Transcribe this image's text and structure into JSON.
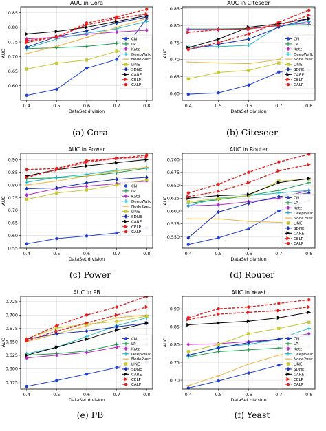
{
  "series_styles": [
    {
      "name": "CN",
      "color": "#1f3fd6",
      "marker": "dot",
      "dash": false
    },
    {
      "name": "LP",
      "color": "#1a9e4a",
      "marker": "plus",
      "dash": false
    },
    {
      "name": "Katz",
      "color": "#b22bc7",
      "marker": "diamond",
      "dash": false
    },
    {
      "name": "DeepWalk",
      "color": "#22b8c9",
      "marker": "plus",
      "dash": false
    },
    {
      "name": "Node2vec",
      "color": "#f0b43c",
      "marker": "line",
      "dash": false
    },
    {
      "name": "LINE",
      "color": "#c5c830",
      "marker": "square",
      "dash": false
    },
    {
      "name": "SDNE",
      "color": "#1a2fb0",
      "marker": "diamond",
      "dash": false
    },
    {
      "name": "CARE",
      "color": "#000000",
      "marker": "triangle",
      "dash": false
    },
    {
      "name": "CELP",
      "color": "#e32020",
      "marker": "triangle",
      "dash": true
    },
    {
      "name": "CALP",
      "color": "#e32020",
      "marker": "dot",
      "dash": true
    }
  ],
  "chart_data": [
    {
      "type": "line",
      "title": "AUC in Cora",
      "caption": "(a) Cora",
      "xlabel": "DataSet division",
      "ylabel": "AUC",
      "x": [
        0.4,
        0.5,
        0.6,
        0.7,
        0.8
      ],
      "xticks": [
        "0.4",
        "0.5",
        "0.6",
        "0.7",
        "0.8"
      ],
      "ylim": [
        0.55,
        0.87
      ],
      "yticks": [
        0.6,
        0.65,
        0.7,
        0.75,
        0.8,
        0.85
      ],
      "ytick_labels": [
        "0.60",
        "0.65",
        "0.70",
        "0.75",
        "0.80",
        "0.85"
      ],
      "legend": "right",
      "series": [
        {
          "name": "CN",
          "values": [
            0.567,
            0.588,
            0.66,
            0.69,
            0.83
          ]
        },
        {
          "name": "LP",
          "values": [
            0.727,
            0.73,
            0.735,
            0.745,
            0.765
          ]
        },
        {
          "name": "Katz",
          "values": [
            0.76,
            0.766,
            0.776,
            0.784,
            0.79
          ]
        },
        {
          "name": "DeepWalk",
          "values": [
            0.728,
            0.76,
            0.78,
            0.795,
            0.82
          ]
        },
        {
          "name": "Node2vec",
          "values": [
            0.71,
            0.735,
            0.765,
            0.8,
            0.83
          ]
        },
        {
          "name": "LINE",
          "values": [
            0.657,
            0.677,
            0.688,
            0.718,
            0.725
          ]
        },
        {
          "name": "SDNE",
          "values": [
            0.732,
            0.768,
            0.788,
            0.815,
            0.835
          ]
        },
        {
          "name": "CARE",
          "values": [
            0.777,
            0.786,
            0.8,
            0.82,
            0.84
          ]
        },
        {
          "name": "CELP",
          "values": [
            0.748,
            0.768,
            0.808,
            0.83,
            0.845
          ]
        },
        {
          "name": "CALP",
          "values": [
            0.755,
            0.765,
            0.815,
            0.835,
            0.862
          ]
        }
      ]
    },
    {
      "type": "line",
      "title": "AUC in Citeseer",
      "caption": "(b) Citeseer",
      "xlabel": "DataSet division",
      "ylabel": "AUC",
      "x": [
        0.4,
        0.5,
        0.6,
        0.7,
        0.8
      ],
      "xticks": [
        "0.4",
        "0.5",
        "0.6",
        "0.7",
        "0.8"
      ],
      "ylim": [
        0.58,
        0.855
      ],
      "yticks": [
        0.6,
        0.65,
        0.7,
        0.75,
        0.8,
        0.85
      ],
      "ytick_labels": [
        "0.60",
        "0.65",
        "0.70",
        "0.75",
        "0.80",
        "0.85"
      ],
      "legend": "right",
      "series": [
        {
          "name": "CN",
          "values": [
            0.598,
            0.602,
            0.625,
            0.663,
            0.668
          ]
        },
        {
          "name": "LP",
          "values": [
            0.79,
            0.79,
            0.792,
            0.8,
            0.803
          ]
        },
        {
          "name": "Katz",
          "values": [
            0.788,
            0.788,
            0.79,
            0.8,
            0.808
          ]
        },
        {
          "name": "DeepWalk",
          "values": [
            0.738,
            0.738,
            0.742,
            0.798,
            0.812
          ]
        },
        {
          "name": "Node2vec",
          "values": [
            0.693,
            0.69,
            0.688,
            0.7,
            0.76
          ]
        },
        {
          "name": "LINE",
          "values": [
            0.643,
            0.662,
            0.668,
            0.69,
            0.7
          ]
        },
        {
          "name": "SDNE",
          "values": [
            0.73,
            0.745,
            0.76,
            0.795,
            0.82
          ]
        },
        {
          "name": "CARE",
          "values": [
            0.735,
            0.76,
            0.795,
            0.805,
            0.82
          ]
        },
        {
          "name": "CELP",
          "values": [
            0.78,
            0.788,
            0.79,
            0.8,
            0.83
          ]
        },
        {
          "name": "CALP",
          "values": [
            0.73,
            0.75,
            0.775,
            0.81,
            0.845
          ]
        }
      ]
    },
    {
      "type": "line",
      "title": "AUC in Power",
      "caption": "(c) Power",
      "xlabel": "DataSet division",
      "ylabel": "AUC",
      "x": [
        0.4,
        0.5,
        0.6,
        0.7,
        0.8
      ],
      "xticks": [
        "0.4",
        "0.5",
        "0.6",
        "0.7",
        "0.8"
      ],
      "ylim": [
        0.55,
        0.925
      ],
      "yticks": [
        0.55,
        0.6,
        0.65,
        0.7,
        0.75,
        0.8,
        0.85,
        0.9
      ],
      "ytick_labels": [
        "0.55",
        "0.60",
        "0.65",
        "0.70",
        "0.75",
        "0.80",
        "0.85",
        "0.90"
      ],
      "legend": "right",
      "series": [
        {
          "name": "CN",
          "values": [
            0.567,
            0.588,
            0.598,
            0.61,
            0.63
          ]
        },
        {
          "name": "LP",
          "values": [
            0.825,
            0.828,
            0.835,
            0.848,
            0.866
          ]
        },
        {
          "name": "Katz",
          "values": [
            0.76,
            0.786,
            0.795,
            0.805,
            0.815
          ]
        },
        {
          "name": "DeepWalk",
          "values": [
            0.81,
            0.83,
            0.842,
            0.858,
            0.868
          ]
        },
        {
          "name": "Node2vec",
          "values": [
            0.8,
            0.815,
            0.835,
            0.855,
            0.87
          ]
        },
        {
          "name": "LINE",
          "values": [
            0.743,
            0.768,
            0.78,
            0.8,
            0.82
          ]
        },
        {
          "name": "SDNE",
          "values": [
            0.785,
            0.788,
            0.808,
            0.822,
            0.83
          ]
        },
        {
          "name": "CARE",
          "values": [
            0.835,
            0.86,
            0.875,
            0.888,
            0.9
          ]
        },
        {
          "name": "CELP",
          "values": [
            0.83,
            0.86,
            0.89,
            0.905,
            0.91
          ]
        },
        {
          "name": "CALP",
          "values": [
            0.86,
            0.865,
            0.895,
            0.905,
            0.918
          ]
        }
      ]
    },
    {
      "type": "line",
      "title": "AUC in Router",
      "caption": "(d) Router",
      "xlabel": "DataSet division",
      "ylabel": "AUC",
      "x": [
        0.4,
        0.5,
        0.6,
        0.7,
        0.8
      ],
      "xticks": [
        "0.4",
        "0.5",
        "0.6",
        "0.7",
        "0.8"
      ],
      "ylim": [
        0.528,
        0.712
      ],
      "yticks": [
        0.55,
        0.575,
        0.6,
        0.625,
        0.65,
        0.675,
        0.7
      ],
      "ytick_labels": [
        "0.550",
        "0.575",
        "0.600",
        "0.625",
        "0.650",
        "0.675",
        "0.700"
      ],
      "legend": "bottom-right",
      "series": [
        {
          "name": "CN",
          "values": [
            0.535,
            0.548,
            0.566,
            0.6,
            0.62
          ]
        },
        {
          "name": "LP",
          "values": [
            0.615,
            0.622,
            0.63,
            0.64,
            0.655
          ]
        },
        {
          "name": "Katz",
          "values": [
            0.61,
            0.612,
            0.618,
            0.625,
            0.64
          ]
        },
        {
          "name": "DeepWalk",
          "values": [
            0.61,
            0.625,
            0.63,
            0.635,
            0.64
          ]
        },
        {
          "name": "Node2vec",
          "values": [
            0.585,
            0.585,
            0.58,
            0.578,
            0.576
          ]
        },
        {
          "name": "LINE",
          "values": [
            0.618,
            0.624,
            0.63,
            0.658,
            0.662
          ]
        },
        {
          "name": "SDNE",
          "values": [
            0.548,
            0.598,
            0.615,
            0.628,
            0.635
          ]
        },
        {
          "name": "CARE",
          "values": [
            0.625,
            0.63,
            0.632,
            0.655,
            0.663
          ]
        },
        {
          "name": "CELP",
          "values": [
            0.628,
            0.638,
            0.655,
            0.678,
            0.69
          ]
        },
        {
          "name": "CALP",
          "values": [
            0.635,
            0.652,
            0.675,
            0.695,
            0.71
          ]
        }
      ]
    },
    {
      "type": "line",
      "title": "AUC in PB",
      "caption": "(e) PB",
      "xlabel": "DataSet division",
      "ylabel": "AUC",
      "x": [
        0.4,
        0.5,
        0.6,
        0.7,
        0.8
      ],
      "xticks": [
        "0.4",
        "0.5",
        "0.6",
        "0.7",
        "0.8"
      ],
      "ylim": [
        0.562,
        0.735
      ],
      "yticks": [
        0.575,
        0.6,
        0.625,
        0.65,
        0.675,
        0.7,
        0.725
      ],
      "ytick_labels": [
        "0.575",
        "0.600",
        "0.625",
        "0.650",
        "0.675",
        "0.700",
        "0.725"
      ],
      "legend": "bottom-right",
      "series": [
        {
          "name": "CN",
          "values": [
            0.567,
            0.578,
            0.59,
            0.602,
            0.612
          ]
        },
        {
          "name": "LP",
          "values": [
            0.625,
            0.628,
            0.633,
            0.645,
            0.655
          ]
        },
        {
          "name": "Katz",
          "values": [
            0.62,
            0.625,
            0.63,
            0.64,
            0.645
          ]
        },
        {
          "name": "DeepWalk",
          "values": [
            0.628,
            0.64,
            0.66,
            0.68,
            0.695
          ]
        },
        {
          "name": "Node2vec",
          "values": [
            0.65,
            0.665,
            0.68,
            0.695,
            0.7
          ]
        },
        {
          "name": "LINE",
          "values": [
            0.655,
            0.676,
            0.683,
            0.688,
            0.698
          ]
        },
        {
          "name": "SDNE",
          "values": [
            0.655,
            0.665,
            0.67,
            0.678,
            0.685
          ]
        },
        {
          "name": "CARE",
          "values": [
            0.625,
            0.64,
            0.655,
            0.672,
            0.685
          ]
        },
        {
          "name": "CELP",
          "values": [
            0.652,
            0.67,
            0.685,
            0.7,
            0.715
          ]
        },
        {
          "name": "CALP",
          "values": [
            0.655,
            0.68,
            0.7,
            0.715,
            0.735
          ]
        }
      ]
    },
    {
      "type": "line",
      "title": "AUC in Yeast",
      "caption": "(f) Yeast",
      "xlabel": "DataSet division",
      "ylabel": "AUC",
      "x": [
        0.4,
        0.5,
        0.6,
        0.7,
        0.8
      ],
      "xticks": [
        "0.4",
        "0.5",
        "0.6",
        "0.7",
        "0.8"
      ],
      "ylim": [
        0.675,
        0.935
      ],
      "yticks": [
        0.7,
        0.75,
        0.8,
        0.85,
        0.9
      ],
      "ytick_labels": [
        "0.70",
        "0.75",
        "0.80",
        "0.85",
        "0.90"
      ],
      "legend": "bottom-right",
      "series": [
        {
          "name": "CN",
          "values": [
            0.678,
            0.698,
            0.72,
            0.742,
            0.76
          ]
        },
        {
          "name": "LP",
          "values": [
            0.765,
            0.78,
            0.785,
            0.79,
            0.795
          ]
        },
        {
          "name": "Katz",
          "values": [
            0.8,
            0.802,
            0.808,
            0.815,
            0.83
          ]
        },
        {
          "name": "DeepWalk",
          "values": [
            0.768,
            0.792,
            0.8,
            0.815,
            0.845
          ]
        },
        {
          "name": "Node2vec",
          "values": [
            0.685,
            0.712,
            0.745,
            0.77,
            0.79
          ]
        },
        {
          "name": "LINE",
          "values": [
            0.78,
            0.8,
            0.83,
            0.845,
            0.862
          ]
        },
        {
          "name": "SDNE",
          "values": [
            0.77,
            0.79,
            0.805,
            0.815,
            0.825
          ]
        },
        {
          "name": "CARE",
          "values": [
            0.855,
            0.86,
            0.865,
            0.875,
            0.89
          ]
        },
        {
          "name": "CELP",
          "values": [
            0.87,
            0.885,
            0.89,
            0.895,
            0.905
          ]
        },
        {
          "name": "CALP",
          "values": [
            0.875,
            0.9,
            0.905,
            0.915,
            0.925
          ]
        }
      ]
    }
  ]
}
